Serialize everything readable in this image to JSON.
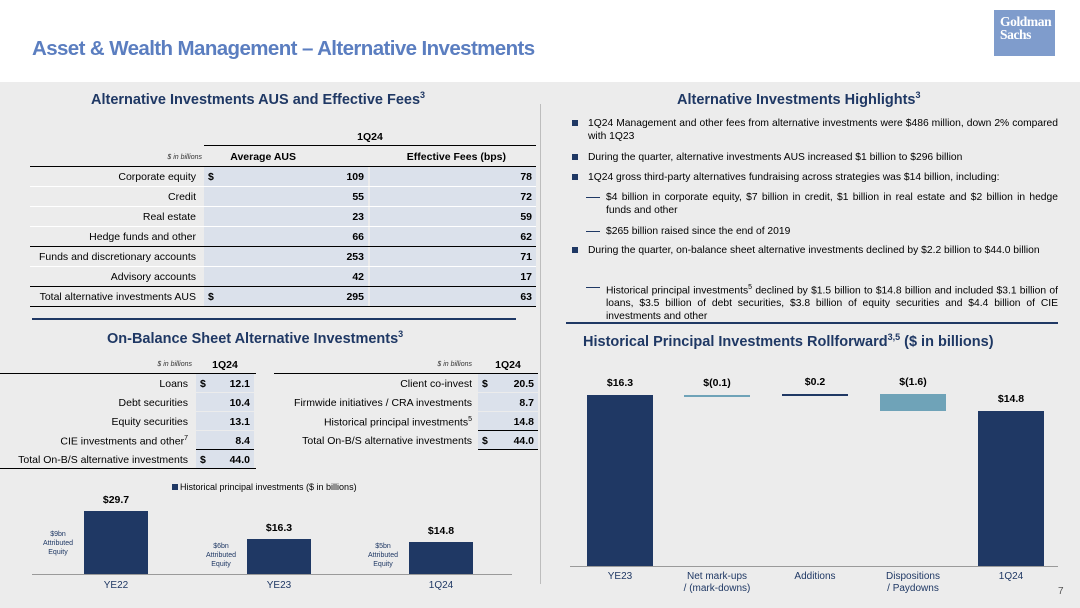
{
  "header": {
    "title": "Asset & Wealth Management – Alternative Investments",
    "logo_line1": "Goldman",
    "logo_line2": "Sachs"
  },
  "aus_table": {
    "title": "Alternative Investments AUS and Effective Fees",
    "title_sup": "3",
    "period": "1Q24",
    "units": "$ in billions",
    "col1": "Average AUS",
    "col2": "Effective Fees (bps)",
    "rows": [
      {
        "label": "Corporate equity",
        "cur": "$",
        "aus": "109",
        "fees": "78"
      },
      {
        "label": "Credit",
        "cur": "",
        "aus": "55",
        "fees": "72"
      },
      {
        "label": "Real estate",
        "cur": "",
        "aus": "23",
        "fees": "59"
      },
      {
        "label": "Hedge funds and other",
        "cur": "",
        "aus": "66",
        "fees": "62"
      },
      {
        "label": "Funds and discretionary accounts",
        "cur": "",
        "aus": "253",
        "fees": "71"
      },
      {
        "label": "Advisory accounts",
        "cur": "",
        "aus": "42",
        "fees": "17"
      },
      {
        "label": "Total alternative investments AUS",
        "cur": "$",
        "aus": "295",
        "fees": "63"
      }
    ]
  },
  "highlights": {
    "title": "Alternative Investments Highlights",
    "title_sup": "3",
    "items": [
      {
        "type": "bullet",
        "text": "1Q24 Management and other fees from alternative investments were $486 million, down 2% compared with 1Q23"
      },
      {
        "type": "bullet",
        "text": "During the quarter, alternative investments AUS increased $1 billion to $296 billion"
      },
      {
        "type": "bullet",
        "text": "1Q24 gross third-party alternatives fundraising across strategies was $14 billion, including:"
      },
      {
        "type": "dash",
        "text": "$4 billion in corporate equity, $7 billion in credit, $1 billion in real estate and $2 billion in hedge funds and other"
      },
      {
        "type": "dash",
        "text": "$265 billion raised since the end of 2019"
      },
      {
        "type": "bullet",
        "text": "During the quarter, on-balance sheet alternative investments declined by $2.2 billion to $44.0 billion"
      },
      {
        "type": "dash",
        "text_pre": "Historical principal investments",
        "text_sup": "5",
        "text": " declined by $1.5 billion to $14.8 billion and included $3.1 billion of loans, $3.5 billion of debt securities, $3.8 billion of equity securities and $4.4 billion of CIE investments and other"
      }
    ]
  },
  "obs": {
    "title": "On-Balance Sheet Alternative Investments",
    "title_sup": "3",
    "units": "$ in billions",
    "period": "1Q24",
    "left_rows": [
      {
        "label": "Loans",
        "cur": "$",
        "val": "12.1"
      },
      {
        "label": "Debt securities",
        "cur": "",
        "val": "10.4"
      },
      {
        "label": "Equity securities",
        "cur": "",
        "val": "13.1"
      },
      {
        "label": "CIE investments and other",
        "sup": "7",
        "cur": "",
        "val": "8.4"
      },
      {
        "label": "Total On-B/S alternative investments",
        "cur": "$",
        "val": "44.0"
      }
    ],
    "right_rows": [
      {
        "label": "Client co-invest",
        "cur": "$",
        "val": "20.5"
      },
      {
        "label": "Firmwide initiatives / CRA investments",
        "cur": "",
        "val": "8.7"
      },
      {
        "label": "Historical principal investments",
        "sup": "5",
        "cur": "",
        "val": "14.8"
      },
      {
        "label": "Total On-B/S alternative investments",
        "cur": "$",
        "val": "44.0"
      }
    ]
  },
  "rollforward": {
    "title": "Historical Principal Investments Rollforward",
    "title_sup": "3,5",
    "title_suffix": " ($ in billions)"
  },
  "chart_data": [
    {
      "type": "bar",
      "legend": "Historical principal investments ($ in billions)",
      "categories": [
        "YE22",
        "YE23",
        "1Q24"
      ],
      "values": [
        29.7,
        16.3,
        14.8
      ],
      "value_labels": [
        "$29.7",
        "$16.3",
        "$14.8"
      ],
      "annotations": [
        [
          "$9bn",
          "Attributed",
          "Equity"
        ],
        [
          "$6bn",
          "Attributed",
          "Equity"
        ],
        [
          "$5bn",
          "Attributed",
          "Equity"
        ]
      ],
      "color": "#1f3864"
    },
    {
      "type": "waterfall",
      "categories": [
        [
          "YE23"
        ],
        [
          "Net mark-ups",
          "/ (mark-downs)"
        ],
        [
          "Additions"
        ],
        [
          "Dispositions",
          "/ Paydowns"
        ],
        [
          "1Q24"
        ]
      ],
      "values": [
        16.3,
        -0.1,
        0.2,
        -1.6,
        14.8
      ],
      "kinds": [
        "total",
        "delta",
        "delta",
        "delta",
        "total"
      ],
      "value_labels": [
        "$16.3",
        "$(0.1)",
        "$0.2",
        "$(1.6)",
        "$14.8"
      ],
      "colors": {
        "total": "#1f3864",
        "negative": "#6fa3b8",
        "positive": "#1f3864"
      }
    }
  ],
  "page_number": "7"
}
